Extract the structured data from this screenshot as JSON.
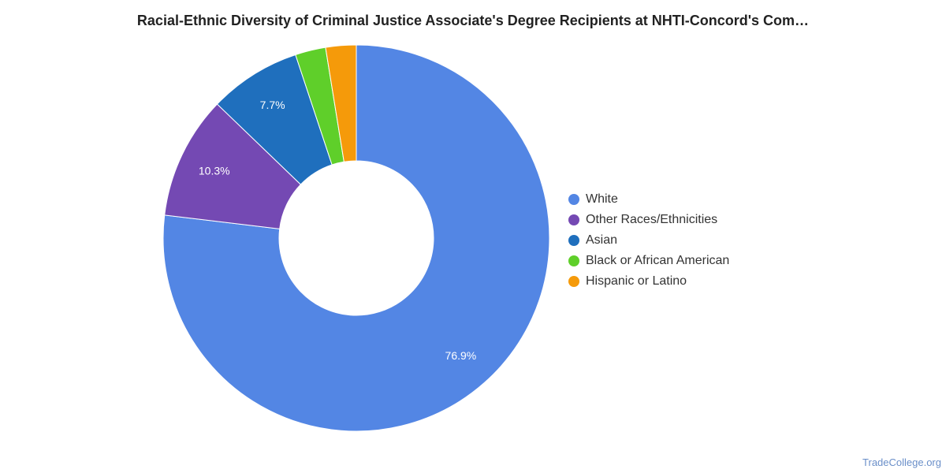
{
  "chart_data": {
    "type": "pie",
    "variant": "donut",
    "title": "Racial-Ethnic Diversity of Criminal Justice Associate's Degree Recipients at NHTI-Concord's Com…",
    "legend_position": "right",
    "slices": [
      {
        "name": "White",
        "value": 76.9,
        "label": "76.9%",
        "color": "#5386e4"
      },
      {
        "name": "Other Races/Ethnicities",
        "value": 10.3,
        "label": "10.3%",
        "color": "#7449b3"
      },
      {
        "name": "Asian",
        "value": 7.7,
        "label": "7.7%",
        "color": "#1f6fbd"
      },
      {
        "name": "Black or African American",
        "value": 2.55,
        "label": "",
        "color": "#5fcf2a"
      },
      {
        "name": "Hispanic or Latino",
        "value": 2.55,
        "label": "",
        "color": "#f59a0a"
      }
    ]
  },
  "watermark": "TradeCollege.org"
}
